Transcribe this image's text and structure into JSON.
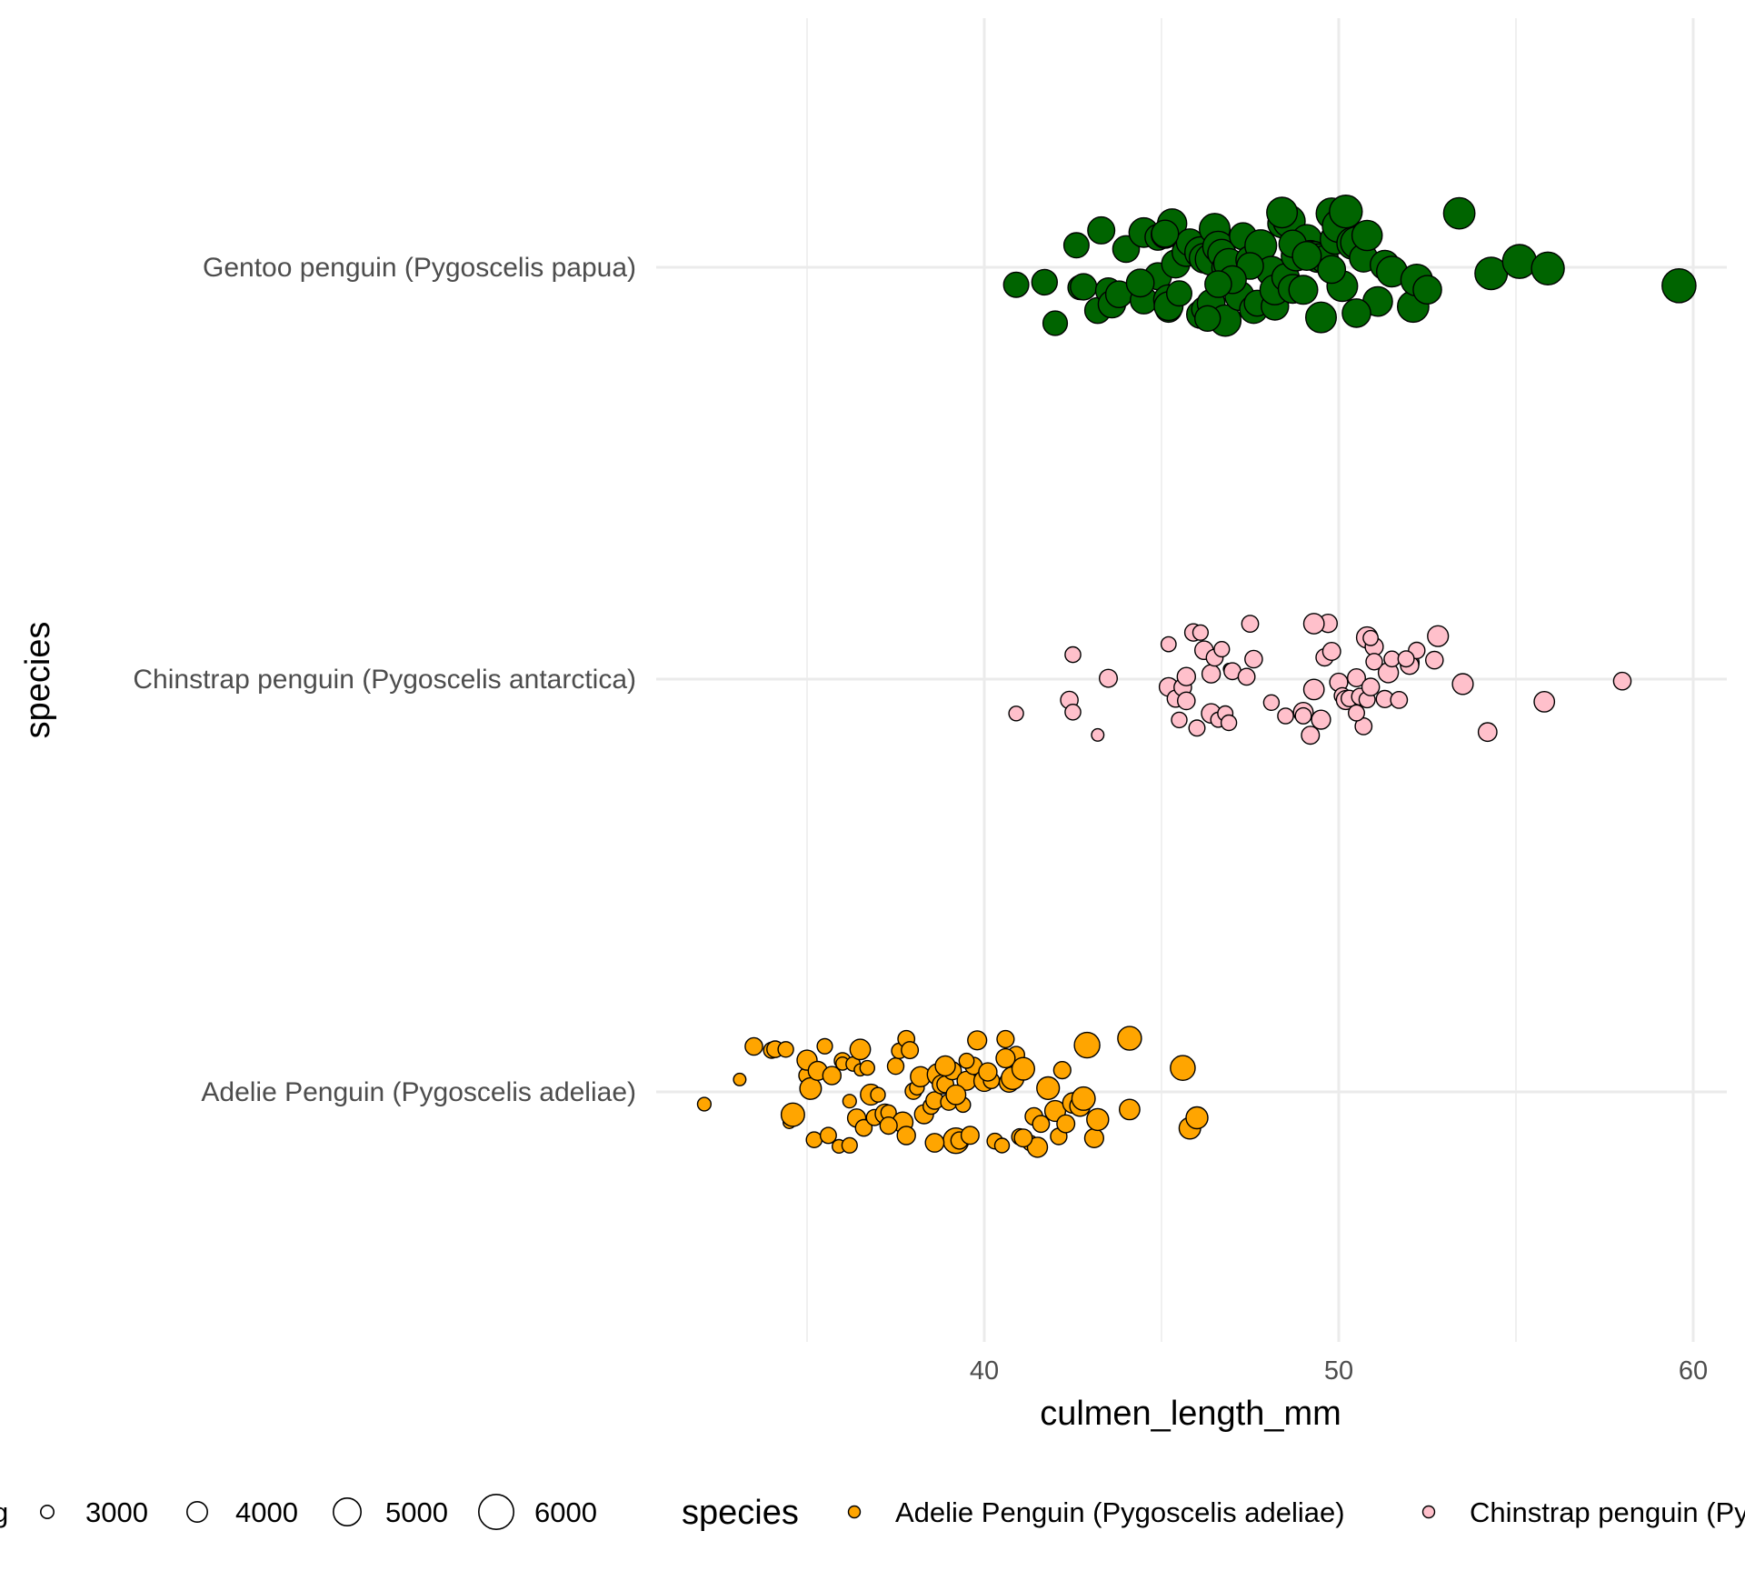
{
  "chart_data": {
    "type": "scatter",
    "title": "",
    "xlabel": "culmen_length_mm",
    "ylabel": "species",
    "xlim": [
      30.8,
      60.9
    ],
    "x_ticks": [
      40,
      50,
      60
    ],
    "x_tick_labels": [
      "40",
      "50",
      "60"
    ],
    "grid": true,
    "legend_position": "bottom",
    "categories": [
      "Adelie Penguin (Pygoscelis adeliae)",
      "Chinstrap penguin (Pygoscelis antarctica)",
      "Gentoo penguin (Pygoscelis papua)"
    ],
    "size_legend": {
      "title": "body_mass_g",
      "visible_title": "g",
      "values": [
        3000,
        4000,
        5000,
        6000
      ],
      "labels": [
        "3000",
        "4000",
        "5000",
        "6000"
      ]
    },
    "color_legend": {
      "title": "species",
      "entries": [
        {
          "label": "Adelie Penguin (Pygoscelis adeliae)",
          "color": "#FFA500"
        },
        {
          "label": "Chinstrap penguin (Pygoscelis antarctica)",
          "color": "#FFC0CB"
        }
      ]
    },
    "colors": {
      "Adelie Penguin (Pygoscelis adeliae)": "#FFA500",
      "Chinstrap penguin (Pygoscelis antarctica)": "#FFC0CB",
      "Gentoo penguin (Pygoscelis papua)": "#006400"
    },
    "series": [
      {
        "name": "Gentoo penguin (Pygoscelis papua)",
        "points": [
          [
            40.9,
            4650
          ],
          [
            42.6,
            4650
          ],
          [
            41.7,
            4700
          ],
          [
            42.0,
            4550
          ],
          [
            42.7,
            4500
          ],
          [
            42.8,
            4800
          ],
          [
            43.3,
            4900
          ],
          [
            43.2,
            4750
          ],
          [
            43.5,
            4700
          ],
          [
            43.6,
            4950
          ],
          [
            43.8,
            4850
          ],
          [
            44.0,
            4850
          ],
          [
            44.5,
            4900
          ],
          [
            44.5,
            5250
          ],
          [
            44.9,
            4900
          ],
          [
            44.9,
            4750
          ],
          [
            45.1,
            5000
          ],
          [
            45.2,
            5300
          ],
          [
            45.2,
            4800
          ],
          [
            45.2,
            5150
          ],
          [
            45.3,
            5200
          ],
          [
            45.4,
            5050
          ],
          [
            45.5,
            4650
          ],
          [
            45.7,
            5100
          ],
          [
            45.8,
            4900
          ],
          [
            46.1,
            5500
          ],
          [
            46.1,
            5000
          ],
          [
            46.2,
            4600
          ],
          [
            46.2,
            5250
          ],
          [
            46.4,
            5550
          ],
          [
            46.4,
            5000
          ],
          [
            46.5,
            4500
          ],
          [
            46.5,
            5400
          ],
          [
            46.6,
            5450
          ],
          [
            46.7,
            5050
          ],
          [
            46.8,
            4900
          ],
          [
            46.8,
            5500
          ],
          [
            46.9,
            5350
          ],
          [
            47.2,
            5200
          ],
          [
            47.3,
            4900
          ],
          [
            47.5,
            5100
          ],
          [
            47.6,
            5050
          ],
          [
            47.7,
            4750
          ],
          [
            47.8,
            5550
          ],
          [
            48.1,
            5300
          ],
          [
            48.2,
            4950
          ],
          [
            48.2,
            5300
          ],
          [
            48.4,
            5100
          ],
          [
            48.5,
            4950
          ],
          [
            48.6,
            5600
          ],
          [
            48.7,
            5150
          ],
          [
            48.8,
            5300
          ],
          [
            49.0,
            5150
          ],
          [
            49.1,
            5300
          ],
          [
            49.2,
            4900
          ],
          [
            49.3,
            5200
          ],
          [
            49.4,
            5100
          ],
          [
            49.5,
            5400
          ],
          [
            49.6,
            5000
          ],
          [
            49.8,
            5450
          ],
          [
            49.9,
            5300
          ],
          [
            50.0,
            5700
          ],
          [
            50.1,
            5400
          ],
          [
            50.2,
            5700
          ],
          [
            50.4,
            5600
          ],
          [
            50.5,
            5550
          ],
          [
            50.7,
            5050
          ],
          [
            50.8,
            5350
          ],
          [
            51.1,
            5250
          ],
          [
            51.3,
            5200
          ],
          [
            51.5,
            5400
          ],
          [
            52.1,
            5500
          ],
          [
            52.2,
            5550
          ],
          [
            52.5,
            5100
          ],
          [
            53.4,
            5500
          ],
          [
            54.3,
            5650
          ],
          [
            55.1,
            5850
          ],
          [
            55.9,
            5700
          ],
          [
            59.6,
            5850
          ],
          [
            48.7,
            4950
          ],
          [
            47.5,
            4850
          ],
          [
            46.3,
            4700
          ],
          [
            45.1,
            4900
          ],
          [
            49.8,
            5000
          ],
          [
            50.5,
            5100
          ],
          [
            47.0,
            5000
          ],
          [
            48.4,
            5400
          ],
          [
            44.4,
            5000
          ],
          [
            46.6,
            4850
          ],
          [
            49.1,
            5150
          ]
        ]
      },
      {
        "name": "Chinstrap penguin (Pygoscelis antarctica)",
        "points": [
          [
            40.9,
            3200
          ],
          [
            42.4,
            3600
          ],
          [
            42.5,
            3350
          ],
          [
            42.5,
            3350
          ],
          [
            43.2,
            2900
          ],
          [
            43.5,
            3650
          ],
          [
            45.2,
            3250
          ],
          [
            45.2,
            3750
          ],
          [
            45.4,
            3525
          ],
          [
            45.5,
            3325
          ],
          [
            45.6,
            3600
          ],
          [
            45.7,
            3600
          ],
          [
            45.9,
            3575
          ],
          [
            46.0,
            3400
          ],
          [
            46.1,
            3300
          ],
          [
            46.2,
            3725
          ],
          [
            46.4,
            3700
          ],
          [
            46.4,
            3850
          ],
          [
            46.5,
            3500
          ],
          [
            46.6,
            3250
          ],
          [
            46.7,
            3300
          ],
          [
            46.8,
            3275
          ],
          [
            46.9,
            2700
          ],
          [
            47.0,
            3500
          ],
          [
            47.5,
            3500
          ],
          [
            47.6,
            3600
          ],
          [
            48.1,
            3325
          ],
          [
            48.5,
            3350
          ],
          [
            49.0,
            3900
          ],
          [
            49.2,
            3650
          ],
          [
            49.3,
            4000
          ],
          [
            49.5,
            3800
          ],
          [
            49.6,
            3550
          ],
          [
            49.7,
            3700
          ],
          [
            49.8,
            3650
          ],
          [
            50.0,
            3675
          ],
          [
            50.1,
            3400
          ],
          [
            50.2,
            3800
          ],
          [
            50.3,
            3450
          ],
          [
            50.5,
            3650
          ],
          [
            50.6,
            3500
          ],
          [
            50.7,
            3500
          ],
          [
            50.8,
            3400
          ],
          [
            50.8,
            4100
          ],
          [
            50.9,
            3600
          ],
          [
            51.0,
            3675
          ],
          [
            51.3,
            3550
          ],
          [
            51.4,
            3950
          ],
          [
            51.5,
            3350
          ],
          [
            51.7,
            3500
          ],
          [
            52.0,
            3800
          ],
          [
            52.0,
            3700
          ],
          [
            52.2,
            3450
          ],
          [
            52.7,
            3600
          ],
          [
            52.8,
            4050
          ],
          [
            53.5,
            4050
          ],
          [
            54.2,
            3750
          ],
          [
            55.8,
            4000
          ],
          [
            58.0,
            3600
          ],
          [
            49.0,
            3400
          ],
          [
            50.5,
            3400
          ],
          [
            51.9,
            3400
          ],
          [
            45.7,
            3700
          ],
          [
            47.4,
            3500
          ],
          [
            50.9,
            3250
          ],
          [
            46.9,
            3325
          ],
          [
            51.0,
            3450
          ],
          [
            49.3,
            4000
          ]
        ]
      },
      {
        "name": "Adelie Penguin (Pygoscelis adeliae)",
        "points": [
          [
            32.1,
            3050
          ],
          [
            33.1,
            2900
          ],
          [
            33.5,
            3600
          ],
          [
            34.0,
            3400
          ],
          [
            34.1,
            3475
          ],
          [
            34.4,
            3325
          ],
          [
            34.5,
            2900
          ],
          [
            34.6,
            3400
          ],
          [
            34.6,
            4400
          ],
          [
            35.0,
            3450
          ],
          [
            35.0,
            3950
          ],
          [
            35.1,
            4150
          ],
          [
            35.2,
            3350
          ],
          [
            35.3,
            3800
          ],
          [
            35.5,
            3300
          ],
          [
            35.6,
            3400
          ],
          [
            35.7,
            3700
          ],
          [
            35.9,
            3050
          ],
          [
            36.0,
            3450
          ],
          [
            36.0,
            3000
          ],
          [
            36.2,
            3050
          ],
          [
            36.2,
            3300
          ],
          [
            36.3,
            3150
          ],
          [
            36.4,
            3700
          ],
          [
            36.5,
            2850
          ],
          [
            36.6,
            3475
          ],
          [
            36.7,
            3200
          ],
          [
            36.8,
            4050
          ],
          [
            36.9,
            3400
          ],
          [
            37.0,
            3200
          ],
          [
            37.2,
            3900
          ],
          [
            37.3,
            3300
          ],
          [
            37.5,
            3450
          ],
          [
            37.6,
            3300
          ],
          [
            37.7,
            4000
          ],
          [
            37.8,
            3500
          ],
          [
            37.9,
            3525
          ],
          [
            38.0,
            3450
          ],
          [
            38.1,
            3200
          ],
          [
            38.2,
            3950
          ],
          [
            38.3,
            3800
          ],
          [
            38.5,
            3400
          ],
          [
            38.6,
            3600
          ],
          [
            38.7,
            4200
          ],
          [
            38.8,
            3800
          ],
          [
            38.9,
            3500
          ],
          [
            39.0,
            3450
          ],
          [
            39.1,
            3650
          ],
          [
            39.2,
            4700
          ],
          [
            39.3,
            3550
          ],
          [
            39.4,
            3250
          ],
          [
            39.5,
            3800
          ],
          [
            39.6,
            3650
          ],
          [
            39.7,
            3550
          ],
          [
            39.8,
            3800
          ],
          [
            40.0,
            4050
          ],
          [
            40.2,
            3400
          ],
          [
            40.3,
            3350
          ],
          [
            40.5,
            3200
          ],
          [
            40.6,
            3550
          ],
          [
            40.7,
            3900
          ],
          [
            40.8,
            4300
          ],
          [
            40.9,
            3500
          ],
          [
            41.0,
            3400
          ],
          [
            41.1,
            4300
          ],
          [
            41.3,
            3300
          ],
          [
            41.4,
            3600
          ],
          [
            41.5,
            3950
          ],
          [
            41.6,
            3500
          ],
          [
            41.8,
            4300
          ],
          [
            42.0,
            4050
          ],
          [
            42.1,
            3450
          ],
          [
            42.2,
            3550
          ],
          [
            42.3,
            3650
          ],
          [
            42.5,
            4000
          ],
          [
            42.7,
            4000
          ],
          [
            42.8,
            4400
          ],
          [
            42.9,
            4700
          ],
          [
            43.1,
            3800
          ],
          [
            43.2,
            4200
          ],
          [
            44.1,
            4450
          ],
          [
            44.1,
            4000
          ],
          [
            45.6,
            4600
          ],
          [
            45.8,
            4150
          ],
          [
            46.0,
            4200
          ],
          [
            38.6,
            3750
          ],
          [
            39.2,
            3900
          ],
          [
            37.8,
            3700
          ],
          [
            40.6,
            3800
          ],
          [
            36.5,
            4000
          ],
          [
            39.5,
            3250
          ],
          [
            41.1,
            3650
          ],
          [
            37.3,
            3550
          ],
          [
            38.9,
            3950
          ],
          [
            40.1,
            3700
          ]
        ]
      }
    ]
  }
}
